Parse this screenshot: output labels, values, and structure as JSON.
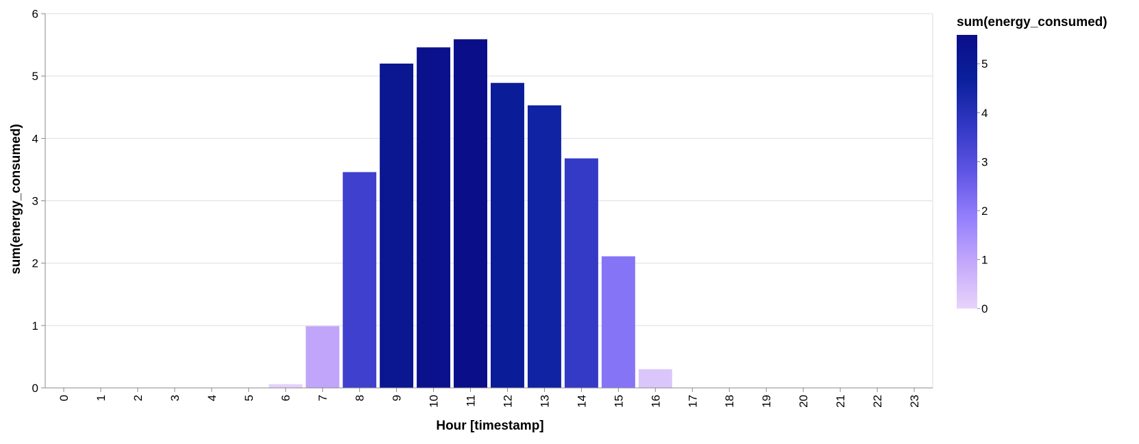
{
  "chart_data": {
    "type": "bar",
    "title": "",
    "xlabel": "Hour [timestamp]",
    "ylabel": "sum(energy_consumed)",
    "categories": [
      "0",
      "1",
      "2",
      "3",
      "4",
      "5",
      "6",
      "7",
      "8",
      "9",
      "10",
      "11",
      "12",
      "13",
      "14",
      "15",
      "16",
      "17",
      "18",
      "19",
      "20",
      "21",
      "22",
      "23"
    ],
    "values": [
      0,
      0,
      0,
      0,
      0,
      0,
      0.06,
      0.99,
      3.46,
      5.2,
      5.46,
      5.59,
      4.89,
      4.53,
      3.68,
      2.11,
      0.3,
      0,
      0,
      0,
      0,
      0,
      0,
      0
    ],
    "ylim": [
      0,
      6
    ],
    "yticks": [
      "0",
      "1",
      "2",
      "3",
      "4",
      "5",
      "6"
    ],
    "grid": true,
    "legend": {
      "title": "sum(energy_consumed)",
      "placement": "top-right",
      "type": "color-gradient",
      "domain": [
        0,
        5.59
      ],
      "ticks": [
        "0",
        "1",
        "2",
        "3",
        "4",
        "5"
      ]
    },
    "colors": {
      "scale": [
        "#e7d4fb",
        "#c3a8fb",
        "#947ffd",
        "#5f55e3",
        "#3238c4",
        "#0b209d",
        "#0b0e89"
      ],
      "grid": "#dddddd",
      "axis": "#888888",
      "text": "#000000"
    }
  }
}
